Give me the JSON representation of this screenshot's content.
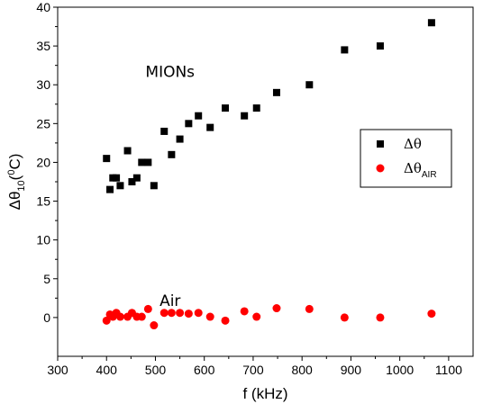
{
  "chart_data": {
    "type": "scatter",
    "title": "",
    "xlabel": "f (kHz)",
    "ylabel": {
      "base": "Δθ",
      "sub": "10",
      "open": "(",
      "sup": "0",
      "close": "C)"
    },
    "xlim": [
      300,
      1150
    ],
    "ylim": [
      -5,
      40
    ],
    "xticks": [
      300,
      400,
      500,
      600,
      700,
      800,
      900,
      1000,
      1100
    ],
    "yticks": [
      0,
      5,
      10,
      15,
      20,
      25,
      30,
      35,
      40
    ],
    "grid": false,
    "legend_position": "right",
    "annotations": [
      {
        "text": "MIONs",
        "x": 530,
        "y": 31
      },
      {
        "text": "Air",
        "x": 530,
        "y": 1.5
      }
    ],
    "series": [
      {
        "name": "Δθ",
        "label_base": "Δθ",
        "label_sub": "",
        "marker": "square",
        "color": "#000000",
        "points": [
          [
            400,
            20.5
          ],
          [
            407,
            16.5
          ],
          [
            413,
            18
          ],
          [
            420,
            18
          ],
          [
            428,
            17
          ],
          [
            443,
            21.5
          ],
          [
            452,
            17.5
          ],
          [
            462,
            18
          ],
          [
            472,
            20
          ],
          [
            485,
            20
          ],
          [
            497,
            17
          ],
          [
            518,
            24
          ],
          [
            533,
            21
          ],
          [
            550,
            23
          ],
          [
            568,
            25
          ],
          [
            588,
            26
          ],
          [
            612,
            24.5
          ],
          [
            643,
            27
          ],
          [
            682,
            26
          ],
          [
            707,
            27
          ],
          [
            748,
            29
          ],
          [
            815,
            30
          ],
          [
            887,
            34.5
          ],
          [
            960,
            35
          ],
          [
            1065,
            38
          ]
        ]
      },
      {
        "name": "ΔθAIR",
        "label_base": "Δθ",
        "label_sub": "AIR",
        "marker": "circle",
        "color": "#ff0000",
        "points": [
          [
            400,
            -0.4
          ],
          [
            407,
            0.4
          ],
          [
            413,
            0.1
          ],
          [
            420,
            0.6
          ],
          [
            428,
            0.1
          ],
          [
            443,
            0.1
          ],
          [
            452,
            0.6
          ],
          [
            462,
            0.1
          ],
          [
            472,
            0.1
          ],
          [
            485,
            1.1
          ],
          [
            497,
            -1.0
          ],
          [
            518,
            0.6
          ],
          [
            533,
            0.6
          ],
          [
            550,
            0.6
          ],
          [
            568,
            0.5
          ],
          [
            588,
            0.6
          ],
          [
            612,
            0.1
          ],
          [
            643,
            -0.4
          ],
          [
            682,
            0.8
          ],
          [
            707,
            0.1
          ],
          [
            748,
            1.2
          ],
          [
            815,
            1.1
          ],
          [
            887,
            0.0
          ],
          [
            960,
            0.0
          ],
          [
            1065,
            0.5
          ]
        ]
      }
    ]
  }
}
